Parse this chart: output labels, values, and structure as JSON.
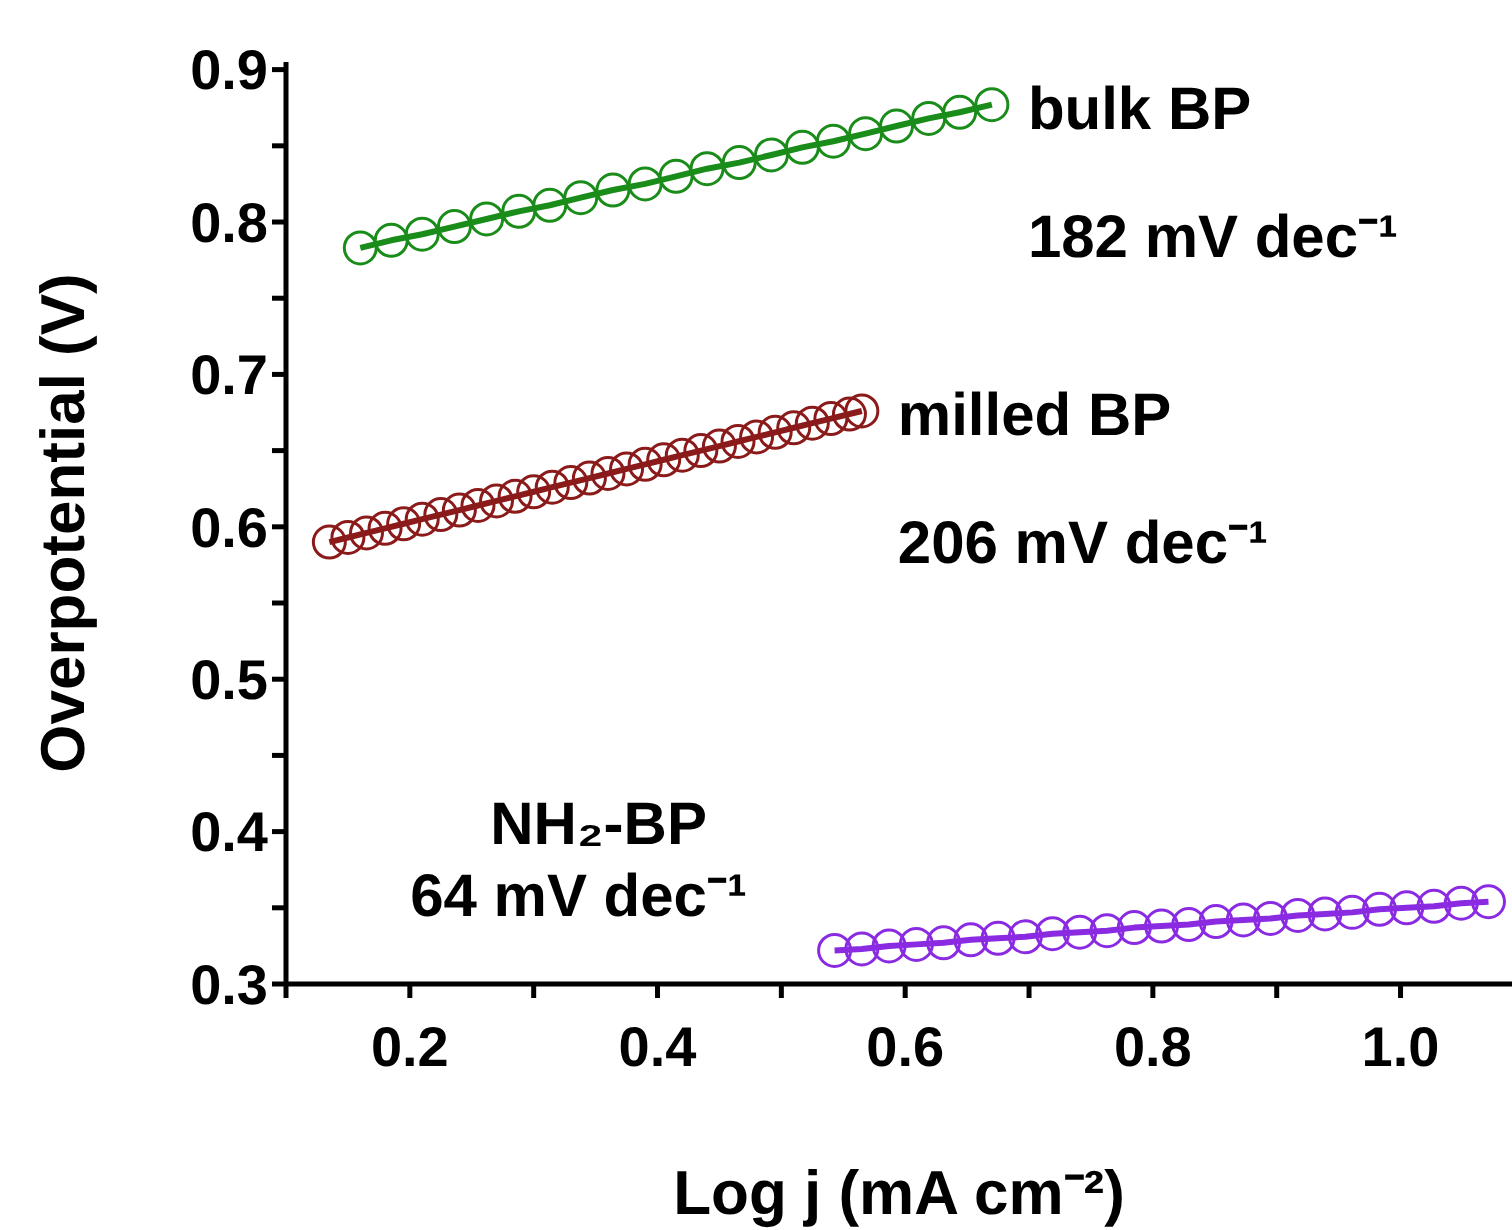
{
  "chart_data": {
    "type": "line",
    "xlabel": "Log j (mA cm⁻²)",
    "ylabel": "Overpotential (V)",
    "xlim": [
      0.1,
      1.09
    ],
    "xticks": [
      {
        "value": 0.1,
        "label": null
      },
      0.2,
      {
        "value": 0.3,
        "label": null
      },
      0.4,
      {
        "value": 0.5,
        "label": null
      },
      0.6,
      {
        "value": 0.7,
        "label": null
      },
      0.8,
      {
        "value": 0.9,
        "label": null
      },
      {
        "value": 1,
        "label": "1.0"
      }
    ],
    "ylim": [
      0.3,
      0.905
    ],
    "yticks": [
      0.3,
      {
        "value": 0.35,
        "label": null
      },
      0.4,
      {
        "value": 0.45,
        "label": null
      },
      0.5,
      {
        "value": 0.55,
        "label": null
      },
      0.6,
      {
        "value": 0.65,
        "label": null
      },
      0.7,
      {
        "value": 0.75,
        "label": null
      },
      0.8,
      {
        "value": 0.85,
        "label": null
      },
      0.9
    ],
    "marker": "circle",
    "line_style": "solid",
    "series": [
      {
        "name": "bulk BP",
        "color": "#1a8c1a",
        "x": [
          0.16,
          0.185,
          0.21,
          0.236,
          0.262,
          0.288,
          0.313,
          0.338,
          0.364,
          0.39,
          0.415,
          0.44,
          0.466,
          0.492,
          0.517,
          0.542,
          0.568,
          0.593,
          0.619,
          0.644,
          0.67
        ],
        "values": [
          0.783,
          0.788,
          0.792,
          0.797,
          0.802,
          0.807,
          0.811,
          0.816,
          0.821,
          0.825,
          0.83,
          0.835,
          0.839,
          0.844,
          0.849,
          0.853,
          0.858,
          0.863,
          0.868,
          0.872,
          0.877
        ]
      },
      {
        "name": "milled BP",
        "color": "#8b1a1a",
        "x": [
          0.135,
          0.15,
          0.165,
          0.18,
          0.195,
          0.21,
          0.225,
          0.24,
          0.255,
          0.27,
          0.285,
          0.3,
          0.315,
          0.33,
          0.345,
          0.36,
          0.375,
          0.39,
          0.405,
          0.42,
          0.435,
          0.45,
          0.465,
          0.48,
          0.495,
          0.51,
          0.525,
          0.54,
          0.555,
          0.565
        ],
        "values": [
          0.59,
          0.593,
          0.596,
          0.599,
          0.602,
          0.605,
          0.608,
          0.611,
          0.614,
          0.617,
          0.62,
          0.623,
          0.626,
          0.629,
          0.632,
          0.635,
          0.638,
          0.641,
          0.644,
          0.647,
          0.65,
          0.653,
          0.656,
          0.659,
          0.662,
          0.665,
          0.668,
          0.671,
          0.674,
          0.676
        ]
      },
      {
        "name": "NH₂-BP",
        "color": "#8a2be2",
        "x": [
          0.543,
          0.565,
          0.587,
          0.609,
          0.631,
          0.653,
          0.675,
          0.697,
          0.719,
          0.741,
          0.763,
          0.785,
          0.807,
          0.829,
          0.851,
          0.873,
          0.895,
          0.917,
          0.939,
          0.961,
          0.983,
          1.005,
          1.027,
          1.049,
          1.071
        ],
        "values": [
          0.322,
          0.323,
          0.325,
          0.326,
          0.327,
          0.329,
          0.33,
          0.331,
          0.333,
          0.334,
          0.335,
          0.337,
          0.338,
          0.339,
          0.341,
          0.342,
          0.343,
          0.345,
          0.346,
          0.347,
          0.349,
          0.35,
          0.351,
          0.353,
          0.354
        ]
      }
    ],
    "annotations": [
      "182 mV dec⁻¹",
      "206 mV dec⁻¹",
      "64 mV dec⁻¹"
    ]
  }
}
